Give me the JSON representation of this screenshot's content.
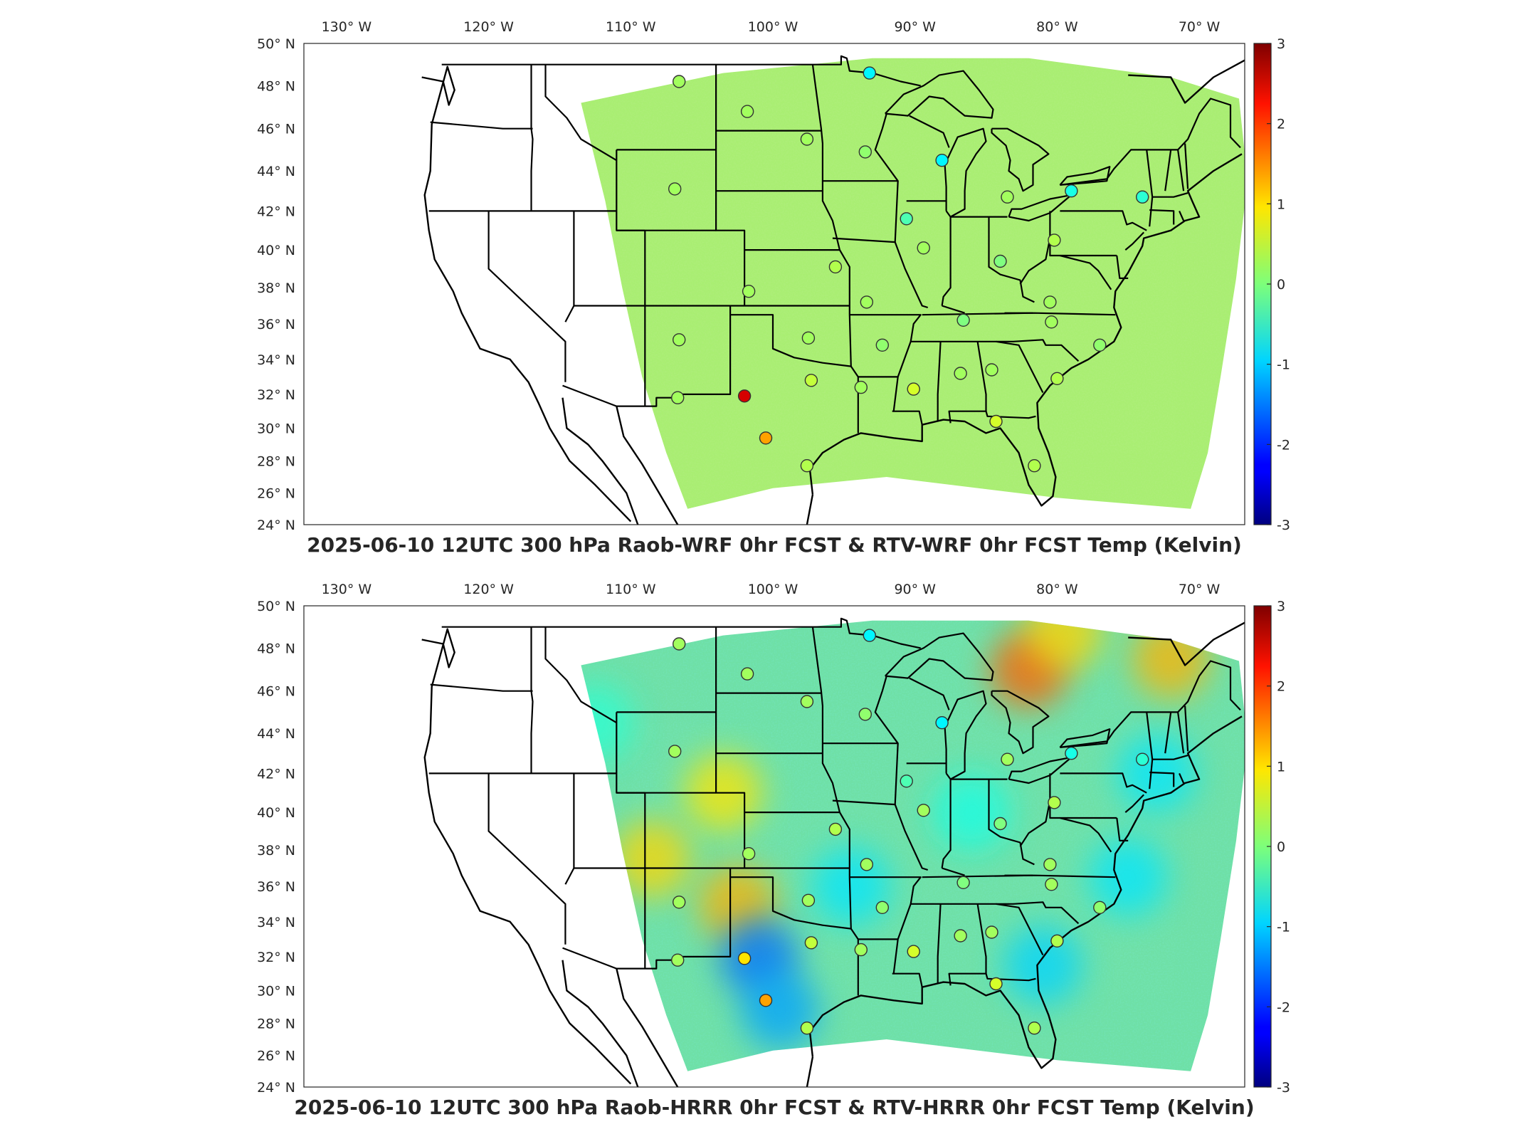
{
  "colorbar": {
    "colormap": "jet",
    "range": [
      -3,
      3
    ],
    "ticks": [
      "3",
      "2",
      "1",
      "0",
      "-1",
      "-2",
      "-3"
    ]
  },
  "axes": {
    "lon_ticks": [
      "130° W",
      "120° W",
      "110° W",
      "100° W",
      "90° W",
      "80° W",
      "70° W"
    ],
    "lat_ticks": [
      "50° N",
      "48° N",
      "46° N",
      "44° N",
      "42° N",
      "40° N",
      "38° N",
      "36° N",
      "34° N",
      "32° N",
      "30° N",
      "28° N",
      "26° N",
      "24° N"
    ]
  },
  "panels": [
    {
      "title": "2025-06-10 12UTC 300 hPa Raob-WRF 0hr FCST & RTV-WRF 0hr FCST Temp (Kelvin)",
      "field_color": "#a9ee72",
      "stations": [
        {
          "lon": -106.6,
          "lat": 48.2,
          "value": 0.2
        },
        {
          "lon": -101.8,
          "lat": 46.8,
          "value": 0.2
        },
        {
          "lon": -93.2,
          "lat": 48.6,
          "value": -0.8
        },
        {
          "lon": -97.6,
          "lat": 45.5,
          "value": 0.2
        },
        {
          "lon": -93.5,
          "lat": 44.9,
          "value": 0.1
        },
        {
          "lon": -88.1,
          "lat": 44.5,
          "value": -0.8
        },
        {
          "lon": -83.5,
          "lat": 42.7,
          "value": 0.2
        },
        {
          "lon": -79.0,
          "lat": 43.0,
          "value": -0.6
        },
        {
          "lon": -74.0,
          "lat": 42.7,
          "value": -0.5
        },
        {
          "lon": -106.9,
          "lat": 43.1,
          "value": 0.2
        },
        {
          "lon": -90.6,
          "lat": 41.6,
          "value": -0.3
        },
        {
          "lon": -89.4,
          "lat": 40.1,
          "value": 0.2
        },
        {
          "lon": -84.0,
          "lat": 39.4,
          "value": 0.0
        },
        {
          "lon": -80.2,
          "lat": 40.5,
          "value": 0.3
        },
        {
          "lon": -95.6,
          "lat": 39.1,
          "value": 0.3
        },
        {
          "lon": -101.7,
          "lat": 37.8,
          "value": 0.2
        },
        {
          "lon": -93.4,
          "lat": 37.2,
          "value": 0.2
        },
        {
          "lon": -86.6,
          "lat": 36.2,
          "value": 0.0
        },
        {
          "lon": -80.4,
          "lat": 36.1,
          "value": 0.2
        },
        {
          "lon": -80.5,
          "lat": 37.2,
          "value": 0.2
        },
        {
          "lon": -106.6,
          "lat": 35.1,
          "value": 0.2
        },
        {
          "lon": -97.5,
          "lat": 35.2,
          "value": 0.2
        },
        {
          "lon": -92.3,
          "lat": 34.8,
          "value": 0.1
        },
        {
          "lon": -86.8,
          "lat": 33.2,
          "value": 0.2
        },
        {
          "lon": -84.6,
          "lat": 33.4,
          "value": 0.2
        },
        {
          "lon": -80.0,
          "lat": 32.9,
          "value": 0.3
        },
        {
          "lon": -77.0,
          "lat": 34.8,
          "value": 0.1
        },
        {
          "lon": -97.3,
          "lat": 32.8,
          "value": 0.4
        },
        {
          "lon": -93.8,
          "lat": 32.4,
          "value": 0.2
        },
        {
          "lon": -90.1,
          "lat": 32.3,
          "value": 0.5
        },
        {
          "lon": -102.0,
          "lat": 31.9,
          "value": 2.5
        },
        {
          "lon": -106.7,
          "lat": 31.8,
          "value": 0.2
        },
        {
          "lon": -100.5,
          "lat": 29.4,
          "value": 1.3
        },
        {
          "lon": -97.6,
          "lat": 27.7,
          "value": 0.3
        },
        {
          "lon": -84.3,
          "lat": 30.4,
          "value": 0.5
        },
        {
          "lon": -81.6,
          "lat": 27.7,
          "value": 0.3
        }
      ]
    },
    {
      "title": "2025-06-10 12UTC 300 hPa Raob-HRRR 0hr FCST & RTV-HRRR 0hr FCST Temp (Kelvin)",
      "field_color": "#6fe0a6",
      "stations": [
        {
          "lon": -106.6,
          "lat": 48.2,
          "value": 0.2
        },
        {
          "lon": -101.8,
          "lat": 46.8,
          "value": 0.2
        },
        {
          "lon": -93.2,
          "lat": 48.6,
          "value": -0.8
        },
        {
          "lon": -97.6,
          "lat": 45.5,
          "value": 0.2
        },
        {
          "lon": -93.5,
          "lat": 44.9,
          "value": 0.1
        },
        {
          "lon": -88.1,
          "lat": 44.5,
          "value": -0.8
        },
        {
          "lon": -83.5,
          "lat": 42.7,
          "value": 0.2
        },
        {
          "lon": -79.0,
          "lat": 43.0,
          "value": -0.6
        },
        {
          "lon": -74.0,
          "lat": 42.7,
          "value": -0.5
        },
        {
          "lon": -106.9,
          "lat": 43.1,
          "value": 0.2
        },
        {
          "lon": -90.6,
          "lat": 41.6,
          "value": -0.3
        },
        {
          "lon": -89.4,
          "lat": 40.1,
          "value": 0.2
        },
        {
          "lon": -84.0,
          "lat": 39.4,
          "value": 0.0
        },
        {
          "lon": -80.2,
          "lat": 40.5,
          "value": 0.3
        },
        {
          "lon": -95.6,
          "lat": 39.1,
          "value": 0.3
        },
        {
          "lon": -101.7,
          "lat": 37.8,
          "value": 0.2
        },
        {
          "lon": -93.4,
          "lat": 37.2,
          "value": 0.2
        },
        {
          "lon": -86.6,
          "lat": 36.2,
          "value": 0.0
        },
        {
          "lon": -80.4,
          "lat": 36.1,
          "value": 0.2
        },
        {
          "lon": -80.5,
          "lat": 37.2,
          "value": 0.2
        },
        {
          "lon": -106.6,
          "lat": 35.1,
          "value": 0.2
        },
        {
          "lon": -97.5,
          "lat": 35.2,
          "value": 0.2
        },
        {
          "lon": -92.3,
          "lat": 34.8,
          "value": 0.1
        },
        {
          "lon": -86.8,
          "lat": 33.2,
          "value": 0.2
        },
        {
          "lon": -84.6,
          "lat": 33.4,
          "value": 0.2
        },
        {
          "lon": -80.0,
          "lat": 32.9,
          "value": 0.3
        },
        {
          "lon": -77.0,
          "lat": 34.8,
          "value": 0.1
        },
        {
          "lon": -97.3,
          "lat": 32.8,
          "value": 0.4
        },
        {
          "lon": -93.8,
          "lat": 32.4,
          "value": 0.2
        },
        {
          "lon": -90.1,
          "lat": 32.3,
          "value": 0.5
        },
        {
          "lon": -102.0,
          "lat": 31.9,
          "value": 0.9
        },
        {
          "lon": -106.7,
          "lat": 31.8,
          "value": 0.2
        },
        {
          "lon": -100.5,
          "lat": 29.4,
          "value": 1.3
        },
        {
          "lon": -97.6,
          "lat": 27.7,
          "value": 0.3
        },
        {
          "lon": -84.3,
          "lat": 30.4,
          "value": 0.5
        },
        {
          "lon": -81.6,
          "lat": 27.7,
          "value": 0.3
        }
      ],
      "anomalies": [
        {
          "lon": -103.5,
          "lat": 41.0,
          "value": 0.9
        },
        {
          "lon": -108.5,
          "lat": 37.5,
          "value": 1.0
        },
        {
          "lon": -102.5,
          "lat": 35.0,
          "value": 1.2
        },
        {
          "lon": -101.0,
          "lat": 32.0,
          "value": -1.6
        },
        {
          "lon": -99.5,
          "lat": 28.8,
          "value": -1.3
        },
        {
          "lon": -94.5,
          "lat": 36.0,
          "value": -0.9
        },
        {
          "lon": -82.0,
          "lat": 47.0,
          "value": 1.7
        },
        {
          "lon": -79.5,
          "lat": 48.8,
          "value": 1.0
        },
        {
          "lon": -72.0,
          "lat": 47.5,
          "value": 1.2
        },
        {
          "lon": -81.0,
          "lat": 31.5,
          "value": -1.0
        },
        {
          "lon": -75.0,
          "lat": 36.5,
          "value": -0.9
        },
        {
          "lon": -86.0,
          "lat": 40.0,
          "value": -0.6
        },
        {
          "lon": -73.0,
          "lat": 42.0,
          "value": -0.9
        },
        {
          "lon": -112.5,
          "lat": 44.5,
          "value": -0.5
        }
      ]
    }
  ]
}
